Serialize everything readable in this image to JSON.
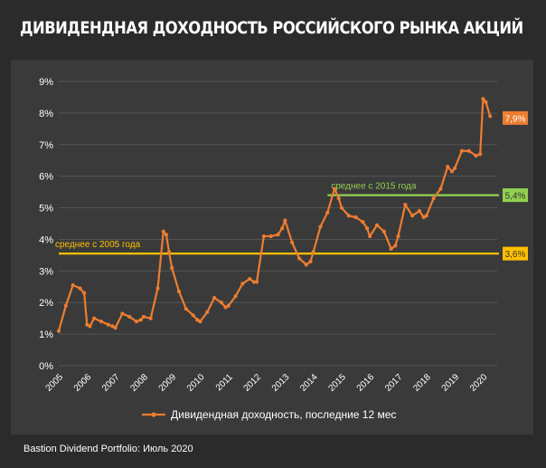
{
  "title": "ДИВИДЕНДНАЯ ДОХОДНОСТЬ РОССИЙСКОГО РЫНКА АКЦИЙ",
  "footer": "Bastion Dividend Portfolio: Июль 2020",
  "colors": {
    "series": "#ED7D31",
    "avg2015": "#92D050",
    "avg2005": "#FFC000",
    "grid": "#555555",
    "text": "#ffffff"
  },
  "chart_data": {
    "type": "line",
    "title": "ДИВИДЕНДНАЯ ДОХОДНОСТЬ РОССИЙСКОГО РЫНКА АКЦИЙ",
    "xlabel": "",
    "ylabel": "",
    "xlim": [
      2005,
      2020.5
    ],
    "ylim": [
      0,
      9
    ],
    "yticks": [
      0,
      1,
      2,
      3,
      4,
      5,
      6,
      7,
      8,
      9
    ],
    "ytick_labels": [
      "0%",
      "1%",
      "2%",
      "3%",
      "4%",
      "5%",
      "6%",
      "7%",
      "8%",
      "9%"
    ],
    "xtick_labels": [
      "2005",
      "2006",
      "2007",
      "2008",
      "2009",
      "2010",
      "2011",
      "2012",
      "2013",
      "2014",
      "2015",
      "2016",
      "2017",
      "2018",
      "2019",
      "2020"
    ],
    "grid": "horizontal",
    "legend": "bottom",
    "series": [
      {
        "name": "Дивидендная доходность, последние 12 мес",
        "end_label": "7,9%",
        "x": [
          2005.0,
          2005.25,
          2005.5,
          2005.75,
          2005.9,
          2006.0,
          2006.1,
          2006.25,
          2006.5,
          2006.75,
          2006.9,
          2007.0,
          2007.25,
          2007.5,
          2007.75,
          2007.9,
          2008.0,
          2008.25,
          2008.5,
          2008.7,
          2008.8,
          2008.9,
          2009.0,
          2009.25,
          2009.5,
          2009.75,
          2009.9,
          2010.0,
          2010.25,
          2010.5,
          2010.75,
          2010.9,
          2011.0,
          2011.25,
          2011.5,
          2011.75,
          2011.9,
          2012.0,
          2012.25,
          2012.5,
          2012.75,
          2012.9,
          2013.0,
          2013.25,
          2013.5,
          2013.75,
          2013.9,
          2014.0,
          2014.25,
          2014.5,
          2014.75,
          2014.9,
          2015.0,
          2015.25,
          2015.5,
          2015.75,
          2015.9,
          2016.0,
          2016.25,
          2016.5,
          2016.75,
          2016.9,
          2017.0,
          2017.25,
          2017.5,
          2017.75,
          2017.9,
          2018.0,
          2018.25,
          2018.5,
          2018.75,
          2018.9,
          2019.0,
          2019.25,
          2019.5,
          2019.75,
          2019.9,
          2020.0,
          2020.1,
          2020.25
        ],
        "y": [
          1.1,
          1.9,
          2.55,
          2.45,
          2.3,
          1.3,
          1.25,
          1.5,
          1.4,
          1.3,
          1.25,
          1.2,
          1.65,
          1.55,
          1.4,
          1.45,
          1.55,
          1.5,
          2.45,
          4.25,
          4.15,
          3.6,
          3.1,
          2.35,
          1.8,
          1.6,
          1.45,
          1.4,
          1.7,
          2.15,
          2.0,
          1.85,
          1.9,
          2.2,
          2.6,
          2.75,
          2.65,
          2.65,
          4.1,
          4.1,
          4.15,
          4.35,
          4.6,
          3.9,
          3.4,
          3.2,
          3.3,
          3.6,
          4.4,
          4.85,
          5.6,
          5.3,
          5.0,
          4.75,
          4.7,
          4.55,
          4.35,
          4.1,
          4.45,
          4.25,
          3.7,
          3.8,
          4.1,
          5.1,
          4.75,
          4.9,
          4.7,
          4.75,
          5.3,
          5.6,
          6.3,
          6.15,
          6.25,
          6.8,
          6.8,
          6.65,
          6.7,
          8.45,
          8.35,
          7.9
        ]
      }
    ],
    "reference_lines": [
      {
        "label": "среднее с 2005 года",
        "value": 3.55,
        "value_label": "3,6%",
        "x_start": 2005.0
      },
      {
        "label": "среднее с 2015 года",
        "value": 5.4,
        "value_label": "5,4%",
        "x_start": 2014.5
      }
    ]
  }
}
